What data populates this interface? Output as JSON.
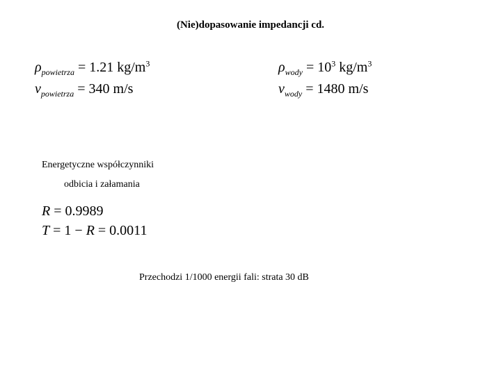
{
  "title": "(Nie)dopasowanie impedancji cd.",
  "air": {
    "rho_symbol": "ρ",
    "rho_sub": "powietrza",
    "rho_eq": " = 1.21 kg/m",
    "rho_sup": "3",
    "v_symbol": "ν",
    "v_sub": "powietrza",
    "v_eq": " = 340 m/s"
  },
  "water": {
    "rho_symbol": "ρ",
    "rho_sub": "wody",
    "rho_eq": " = 10",
    "rho_sup1": "3",
    "rho_unit": " kg/m",
    "rho_sup2": "3",
    "v_symbol": "ν",
    "v_sub": "wody",
    "v_eq": " = 1480 m/s"
  },
  "subtitle1": "Energetyczne współczynniki",
  "subtitle2": "odbicia i załamania",
  "coeffs": {
    "R_symbol": "R",
    "R_eq": " = 0.9989",
    "T_symbol": "T",
    "T_eq_part1": " = 1 − ",
    "T_eq_R": "R",
    "T_eq_part2": " = 0.0011"
  },
  "conclusion": "Przechodzi 1/1000 energii fali: strata 30 dB",
  "colors": {
    "background": "#ffffff",
    "text": "#000000"
  },
  "fonts": {
    "title_size": 15,
    "body_size": 14,
    "equation_size": 20,
    "sub_size": 12
  }
}
